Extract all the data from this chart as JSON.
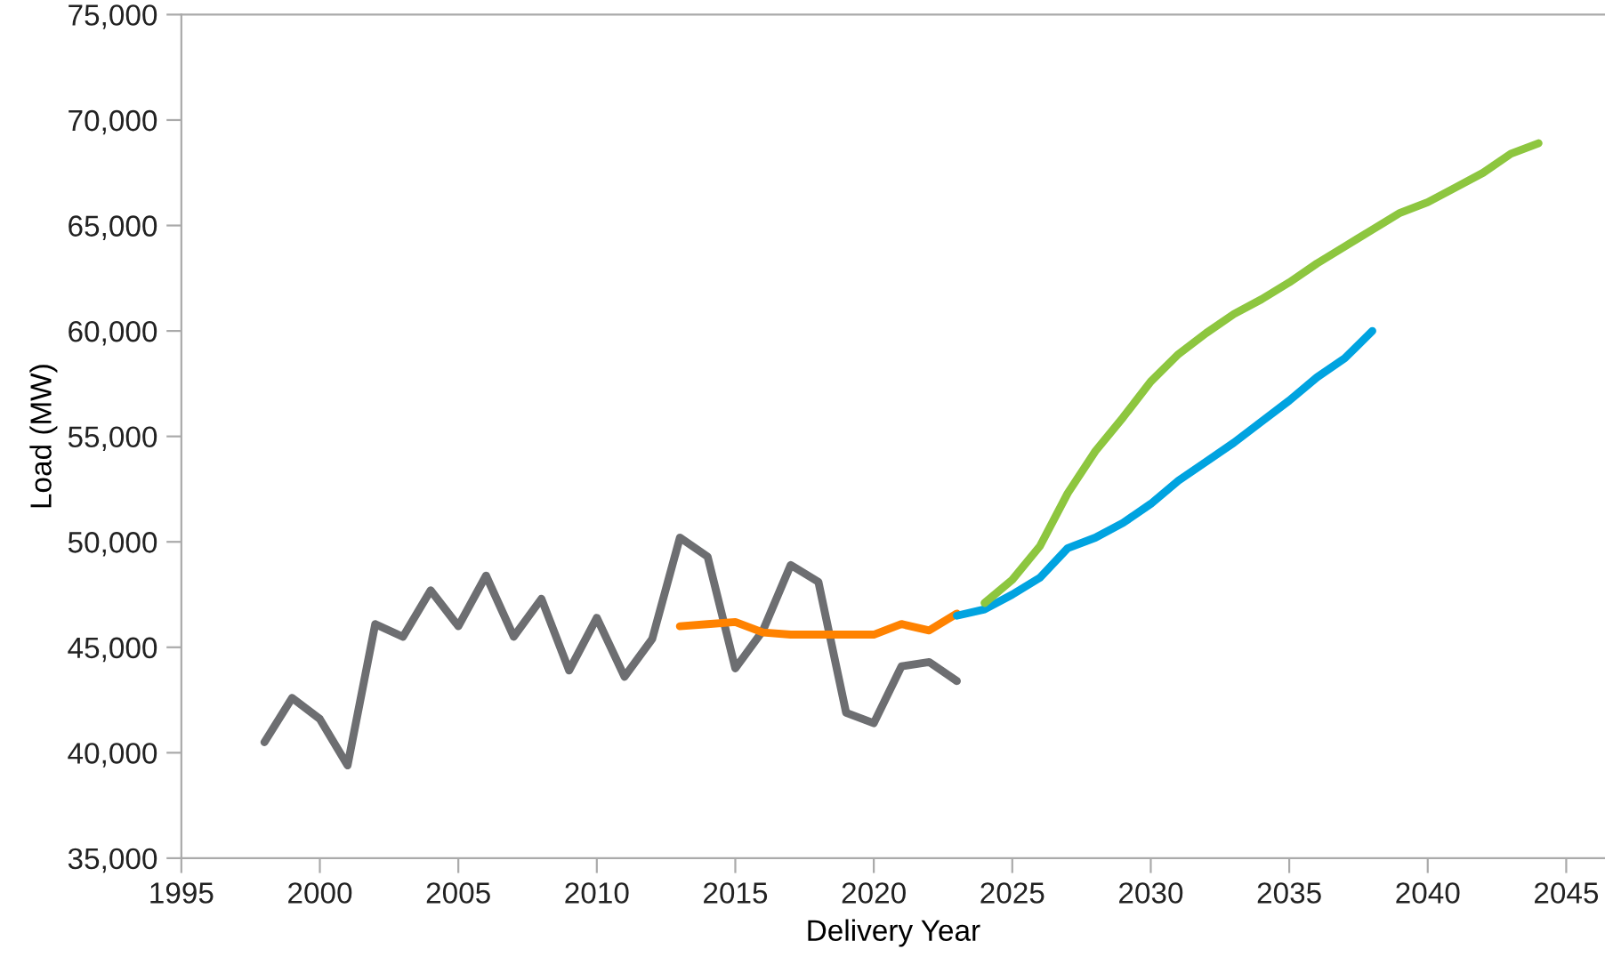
{
  "chart_data": {
    "type": "line",
    "xlabel": "Delivery Year",
    "ylabel": "Load (MW)",
    "xlim": [
      1995,
      2046.4
    ],
    "xticks": [
      1995,
      2000,
      2005,
      2010,
      2015,
      2020,
      2025,
      2030,
      2035,
      2040,
      2045
    ],
    "ylim": [
      35000,
      75000
    ],
    "yticks": [
      {
        "value": 35000,
        "label": "35,000"
      },
      {
        "value": 40000,
        "label": "40,000"
      },
      {
        "value": 45000,
        "label": "45,000"
      },
      {
        "value": 50000,
        "label": "50,000"
      },
      {
        "value": 55000,
        "label": "55,000"
      },
      {
        "value": 60000,
        "label": "60,000"
      },
      {
        "value": 65000,
        "label": "65,000"
      },
      {
        "value": 70000,
        "label": "70,000"
      },
      {
        "value": 75000,
        "label": "75,000"
      }
    ],
    "grid": false,
    "marker": "none",
    "line_style": "solid",
    "series": [
      {
        "color": "#6d6e71",
        "x": [
          1998,
          1999,
          2000,
          2001,
          2002,
          2003,
          2004,
          2005,
          2006,
          2007,
          2008,
          2009,
          2010,
          2011,
          2012,
          2013,
          2014,
          2015,
          2016,
          2017,
          2018,
          2019,
          2020,
          2021,
          2022,
          2023
        ],
        "values": [
          40500,
          42600,
          41600,
          39400,
          46100,
          45500,
          47700,
          46000,
          48400,
          45500,
          47300,
          43900,
          46400,
          43600,
          45400,
          50200,
          49300,
          44000,
          45800,
          48900,
          48100,
          41900,
          41400,
          44100,
          44300,
          43400
        ]
      },
      {
        "color": "#ff8200",
        "x": [
          2013,
          2014,
          2015,
          2016,
          2017,
          2018,
          2019,
          2020,
          2021,
          2022,
          2023
        ],
        "values": [
          46000,
          46100,
          46200,
          45700,
          45600,
          45600,
          45600,
          45600,
          46100,
          45800,
          46600
        ]
      },
      {
        "color": "#00a3e0",
        "x": [
          2023,
          2024,
          2025,
          2026,
          2027,
          2028,
          2029,
          2030,
          2031,
          2032,
          2033,
          2034,
          2035,
          2036,
          2037,
          2038
        ],
        "values": [
          46500,
          46800,
          47500,
          48300,
          49700,
          50200,
          50900,
          51800,
          52900,
          53800,
          54700,
          55700,
          56700,
          57800,
          58700,
          60000
        ]
      },
      {
        "color": "#8dc63f",
        "x": [
          2024,
          2025,
          2026,
          2027,
          2028,
          2029,
          2030,
          2031,
          2032,
          2033,
          2034,
          2035,
          2036,
          2037,
          2038,
          2039,
          2040,
          2041,
          2042,
          2043,
          2044
        ],
        "values": [
          47100,
          48200,
          49800,
          52300,
          54300,
          55900,
          57600,
          58900,
          59900,
          60800,
          61500,
          62300,
          63200,
          64000,
          64800,
          65600,
          66100,
          66800,
          67500,
          68400,
          68900
        ]
      }
    ]
  }
}
